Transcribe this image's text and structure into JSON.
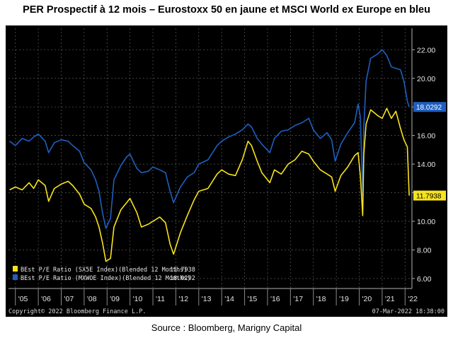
{
  "title": "PER Prospectif à 12 mois – Eurostoxx 50 en jaune et MSCI World ex Europe en bleu",
  "source": "Source : Bloomberg, Marigny Capital",
  "footer": {
    "copyright": "Copyright© 2022 Bloomberg Finance L.P.",
    "timestamp": "07-Mar-2022 18:38:00"
  },
  "colors": {
    "yellow": "#f7e31c",
    "blue": "#1f5fbf",
    "background": "#000000",
    "grid": "#5a5a5a"
  },
  "chart_data": {
    "type": "line",
    "x_range": [
      2004.7,
      2022.3
    ],
    "ylim": [
      5.3,
      23.5
    ],
    "y_ticks": [
      6,
      8,
      10,
      12,
      14,
      16,
      18,
      20,
      22
    ],
    "y_tick_labels": [
      "6.00",
      "8.00",
      "10.00",
      "12.00",
      "14.00",
      "16.00",
      "18.00",
      "20.00",
      "22.00"
    ],
    "x_ticks": [
      2005,
      2006,
      2007,
      2008,
      2009,
      2010,
      2011,
      2012,
      2013,
      2014,
      2015,
      2016,
      2017,
      2018,
      2019,
      2020,
      2021,
      2022
    ],
    "x_tick_labels": [
      "'05",
      "'06",
      "'07",
      "'08",
      "'09",
      "'10",
      "'11",
      "'12",
      "'13",
      "'14",
      "'15",
      "'16",
      "'17",
      "'18",
      "'19",
      "'20",
      "'21",
      "'22"
    ],
    "grid": true,
    "legend_position": "bottom-left",
    "series": [
      {
        "name": "BEst P/E Ratio (SX5E Index)(Blended 12 Months)",
        "last_value": "11.7938",
        "color": "#f7e31c",
        "x": [
          2004.75,
          2005.0,
          2005.3,
          2005.6,
          2005.8,
          2006.0,
          2006.3,
          2006.45,
          2006.7,
          2007.0,
          2007.3,
          2007.5,
          2007.8,
          2008.0,
          2008.3,
          2008.5,
          2008.65,
          2008.8,
          2008.95,
          2009.15,
          2009.3,
          2009.6,
          2009.85,
          2010.0,
          2010.3,
          2010.5,
          2010.8,
          2011.0,
          2011.3,
          2011.55,
          2011.75,
          2011.9,
          2012.2,
          2012.5,
          2012.8,
          2013.0,
          2013.4,
          2013.8,
          2014.0,
          2014.3,
          2014.6,
          2014.9,
          2015.15,
          2015.3,
          2015.55,
          2015.75,
          2016.1,
          2016.3,
          2016.6,
          2016.9,
          2017.2,
          2017.5,
          2017.8,
          2018.0,
          2018.3,
          2018.6,
          2018.8,
          2018.95,
          2019.2,
          2019.5,
          2019.8,
          2019.95,
          2020.05,
          2020.15,
          2020.2,
          2020.3,
          2020.5,
          2020.8,
          2021.0,
          2021.2,
          2021.4,
          2021.6,
          2021.8,
          2021.95,
          2022.1,
          2022.18
        ],
        "values": [
          12.2,
          12.4,
          12.2,
          12.7,
          12.3,
          12.9,
          12.5,
          11.4,
          12.3,
          12.6,
          12.8,
          12.5,
          11.9,
          11.2,
          10.9,
          10.3,
          9.6,
          8.5,
          7.2,
          7.4,
          9.6,
          10.8,
          11.3,
          11.6,
          10.6,
          9.6,
          9.8,
          10.0,
          10.3,
          9.9,
          8.4,
          7.7,
          9.2,
          10.4,
          11.5,
          12.1,
          12.3,
          13.3,
          13.6,
          13.3,
          13.2,
          14.3,
          15.6,
          15.3,
          14.2,
          13.4,
          12.7,
          13.6,
          13.3,
          14.0,
          14.3,
          14.9,
          14.7,
          14.2,
          13.6,
          13.3,
          13.1,
          12.1,
          13.2,
          13.8,
          14.6,
          14.8,
          13.2,
          10.4,
          14.7,
          16.8,
          17.8,
          17.4,
          17.2,
          17.9,
          17.2,
          17.7,
          16.5,
          15.7,
          15.2,
          11.8
        ]
      },
      {
        "name": "BEst P/E Ratio (MXWOE Index)(Blended 12 Months)",
        "last_value": "18.0292",
        "color": "#1f5fbf",
        "x": [
          2004.75,
          2005.0,
          2005.3,
          2005.6,
          2005.8,
          2006.0,
          2006.3,
          2006.45,
          2006.7,
          2007.0,
          2007.3,
          2007.5,
          2007.8,
          2008.0,
          2008.3,
          2008.5,
          2008.65,
          2008.8,
          2008.95,
          2009.15,
          2009.3,
          2009.6,
          2009.85,
          2010.0,
          2010.3,
          2010.5,
          2010.8,
          2011.0,
          2011.3,
          2011.55,
          2011.75,
          2011.9,
          2012.2,
          2012.5,
          2012.8,
          2013.0,
          2013.4,
          2013.8,
          2014.0,
          2014.3,
          2014.6,
          2014.9,
          2015.15,
          2015.3,
          2015.55,
          2015.75,
          2016.1,
          2016.3,
          2016.6,
          2016.9,
          2017.2,
          2017.5,
          2017.8,
          2018.0,
          2018.3,
          2018.6,
          2018.8,
          2018.95,
          2019.2,
          2019.5,
          2019.8,
          2019.95,
          2020.05,
          2020.15,
          2020.2,
          2020.3,
          2020.5,
          2020.8,
          2021.0,
          2021.2,
          2021.4,
          2021.6,
          2021.8,
          2021.95,
          2022.1,
          2022.18
        ],
        "values": [
          15.6,
          15.3,
          15.8,
          15.6,
          15.9,
          16.1,
          15.6,
          14.8,
          15.5,
          15.7,
          15.6,
          15.3,
          14.9,
          14.1,
          13.6,
          12.9,
          12.1,
          10.6,
          9.5,
          10.2,
          12.9,
          13.9,
          14.5,
          14.7,
          13.7,
          13.4,
          13.5,
          13.8,
          13.6,
          13.4,
          12.1,
          11.3,
          12.4,
          13.1,
          13.4,
          14.0,
          14.3,
          15.3,
          15.6,
          15.9,
          16.1,
          16.4,
          16.8,
          16.6,
          15.8,
          15.4,
          14.8,
          15.8,
          16.3,
          16.4,
          16.7,
          16.9,
          17.2,
          16.4,
          15.8,
          16.2,
          15.7,
          14.2,
          15.4,
          16.2,
          16.9,
          18.2,
          17.3,
          11.8,
          16.6,
          19.8,
          21.4,
          21.7,
          22.0,
          21.6,
          20.8,
          20.7,
          20.6,
          19.8,
          18.4,
          18.0
        ]
      }
    ]
  }
}
